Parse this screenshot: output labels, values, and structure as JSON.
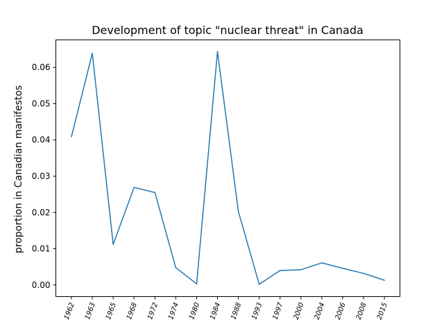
{
  "chart_data": {
    "type": "line",
    "title": "Development of topic \"nuclear threat\" in Canada",
    "xlabel": "",
    "ylabel": "proportion in Canadian manifestos",
    "categories": [
      "1962",
      "1963",
      "1965",
      "1968",
      "1972",
      "1974",
      "1980",
      "1984",
      "1988",
      "1993",
      "1997",
      "2000",
      "2004",
      "2006",
      "2008",
      "2015"
    ],
    "series": [
      {
        "values": [
          0.0409,
          0.0639,
          0.0112,
          0.0269,
          0.0255,
          0.0048,
          0.0003,
          0.0644,
          0.0203,
          0.0002,
          0.004,
          0.0042,
          0.0061,
          0.0046,
          0.0032,
          0.0013
        ],
        "color": "#1f77b4"
      }
    ],
    "ylim": [
      -0.0032,
      0.0676
    ],
    "yticks": [
      0.0,
      0.01,
      0.02,
      0.03,
      0.04,
      0.05,
      0.06
    ],
    "ytick_labels": [
      "0.00",
      "0.01",
      "0.02",
      "0.03",
      "0.04",
      "0.05",
      "0.06"
    ],
    "grid": false,
    "legend": "none"
  }
}
